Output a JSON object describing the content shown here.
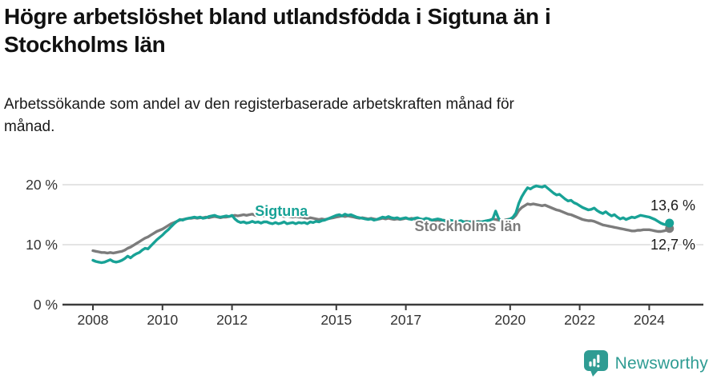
{
  "header": {
    "title_lines": [
      "Högre arbetslöshet bland utlandsfödda i Sigtuna än i",
      "Stockholms län"
    ],
    "subtitle_lines": [
      "Arbetssökande som andel av den registerbaserade arbetskraften månad för",
      "månad."
    ]
  },
  "footer": {
    "brand": "Newsworthy",
    "brand_color": "#2f9c93"
  },
  "chart_data": {
    "type": "line",
    "title": "Högre arbetslöshet bland utlandsfödda i Sigtuna än i Stockholms län",
    "subtitle": "Arbetssökande som andel av den registerbaserade arbetskraften månad för månad.",
    "unit": "%",
    "frequency": "monthly",
    "x_axis": {
      "ticks": [
        {
          "value": 2008,
          "label": "2008"
        },
        {
          "value": 2010,
          "label": "2010"
        },
        {
          "value": 2012,
          "label": "2012"
        },
        {
          "value": 2015,
          "label": "2015"
        },
        {
          "value": 2017,
          "label": "2017"
        },
        {
          "value": 2020,
          "label": "2020"
        },
        {
          "value": 2022,
          "label": "2022"
        },
        {
          "value": 2024,
          "label": "2024"
        }
      ],
      "range": [
        2008.0,
        2024.6
      ]
    },
    "y_axis": {
      "ticks": [
        {
          "value": 0,
          "label": "0 %"
        },
        {
          "value": 10,
          "label": "10 %"
        },
        {
          "value": 20,
          "label": "20 %"
        }
      ],
      "range": [
        0,
        24
      ]
    },
    "grid": "horizontal-only",
    "legend": "inline-labels",
    "colors": {
      "sigtuna": "#18a296",
      "stockholm": "#7c7c7c",
      "grid": "#dcdcdc",
      "axis": "#3b3b3b",
      "tick_label": "#333333",
      "value_label": "#1a1a1a",
      "halo": "#ffffff"
    },
    "series": [
      {
        "name": "Sigtuna",
        "color": "#18a296",
        "start_year": 2008,
        "start_month": 1,
        "end_label": "13,6 %",
        "label_at": {
          "year": 2012.66,
          "pct": 14.8
        },
        "values": [
          7.4,
          7.2,
          7.1,
          7.0,
          7.1,
          7.3,
          7.5,
          7.2,
          7.1,
          7.2,
          7.4,
          7.7,
          8.1,
          7.8,
          8.2,
          8.5,
          8.7,
          9.1,
          9.4,
          9.3,
          9.8,
          10.3,
          10.8,
          11.2,
          11.6,
          12.1,
          12.5,
          13.0,
          13.5,
          13.9,
          14.2,
          14.1,
          14.3,
          14.4,
          14.5,
          14.6,
          14.5,
          14.6,
          14.4,
          14.5,
          14.7,
          14.8,
          14.9,
          14.7,
          14.6,
          14.7,
          14.8,
          14.7,
          14.9,
          14.3,
          13.9,
          13.7,
          13.8,
          13.6,
          13.7,
          13.9,
          13.7,
          13.8,
          13.6,
          13.8,
          13.8,
          13.6,
          13.5,
          13.7,
          13.5,
          13.6,
          13.8,
          13.5,
          13.6,
          13.7,
          13.5,
          13.7,
          13.6,
          13.7,
          13.5,
          13.8,
          13.7,
          13.9,
          13.8,
          14.0,
          14.1,
          14.3,
          14.5,
          14.7,
          14.9,
          15.0,
          14.8,
          15.1,
          14.9,
          15.0,
          14.8,
          14.6,
          14.5,
          14.4,
          14.3,
          14.2,
          14.3,
          14.1,
          14.2,
          14.4,
          14.6,
          14.5,
          14.7,
          14.5,
          14.4,
          14.5,
          14.3,
          14.4,
          14.5,
          14.3,
          14.2,
          14.4,
          14.5,
          14.3,
          14.2,
          14.4,
          14.3,
          14.1,
          14.2,
          14.3,
          14.2,
          14.0,
          13.9,
          14.1,
          14.0,
          13.8,
          13.9,
          14.0,
          13.8,
          13.7,
          13.8,
          13.9,
          13.8,
          13.7,
          13.8,
          13.9,
          14.0,
          14.1,
          14.3,
          15.6,
          14.4,
          13.9,
          14.0,
          14.1,
          14.3,
          14.6,
          15.3,
          16.9,
          18.0,
          18.8,
          19.5,
          19.3,
          19.6,
          19.8,
          19.7,
          19.6,
          19.8,
          19.4,
          19.0,
          18.6,
          18.3,
          18.4,
          18.0,
          17.6,
          17.3,
          17.4,
          17.0,
          16.8,
          16.5,
          16.2,
          16.0,
          15.8,
          15.9,
          16.1,
          15.7,
          15.4,
          15.2,
          15.5,
          15.1,
          14.8,
          15.0,
          14.6,
          14.3,
          14.5,
          14.2,
          14.4,
          14.6,
          14.5,
          14.7,
          14.9,
          14.8,
          14.7,
          14.6,
          14.4,
          14.2,
          13.9,
          13.6,
          13.4,
          13.3,
          13.6
        ]
      },
      {
        "name": "Stockholms län",
        "color": "#7c7c7c",
        "start_year": 2008,
        "start_month": 1,
        "end_label": "12,7 %",
        "label_at": {
          "year": 2017.25,
          "pct": 12.3
        },
        "values": [
          9.0,
          8.9,
          8.8,
          8.7,
          8.7,
          8.6,
          8.7,
          8.6,
          8.7,
          8.8,
          8.9,
          9.1,
          9.4,
          9.6,
          9.9,
          10.2,
          10.5,
          10.8,
          11.1,
          11.3,
          11.6,
          11.9,
          12.2,
          12.4,
          12.6,
          12.9,
          13.2,
          13.5,
          13.7,
          13.9,
          14.1,
          14.2,
          14.3,
          14.4,
          14.4,
          14.5,
          14.4,
          14.5,
          14.5,
          14.6,
          14.5,
          14.6,
          14.7,
          14.6,
          14.5,
          14.6,
          14.6,
          14.7,
          14.8,
          14.9,
          14.8,
          14.9,
          15.0,
          14.9,
          15.0,
          15.1,
          14.9,
          14.8,
          14.9,
          14.8,
          14.9,
          15.0,
          14.9,
          14.8,
          14.9,
          14.8,
          14.7,
          14.8,
          14.7,
          14.6,
          14.7,
          14.6,
          14.6,
          14.5,
          14.4,
          14.5,
          14.4,
          14.3,
          14.2,
          14.3,
          14.2,
          14.3,
          14.4,
          14.5,
          14.6,
          14.7,
          14.8,
          14.7,
          14.8,
          14.7,
          14.6,
          14.5,
          14.4,
          14.5,
          14.4,
          14.3,
          14.4,
          14.3,
          14.2,
          14.3,
          14.4,
          14.3,
          14.4,
          14.3,
          14.2,
          14.3,
          14.2,
          14.3,
          14.4,
          14.3,
          14.4,
          14.3,
          14.2,
          14.3,
          14.2,
          14.1,
          14.2,
          14.1,
          14.0,
          14.1,
          14.0,
          14.1,
          14.0,
          13.9,
          14.0,
          13.9,
          13.8,
          13.9,
          13.8,
          13.9,
          13.8,
          13.9,
          13.8,
          13.9,
          13.8,
          13.9,
          14.0,
          14.1,
          14.3,
          14.2,
          14.1,
          14.0,
          14.1,
          14.2,
          14.3,
          14.4,
          14.9,
          15.7,
          16.2,
          16.5,
          16.8,
          16.7,
          16.8,
          16.7,
          16.6,
          16.5,
          16.6,
          16.4,
          16.2,
          16.0,
          15.8,
          15.7,
          15.5,
          15.3,
          15.1,
          15.0,
          14.8,
          14.6,
          14.4,
          14.2,
          14.1,
          14.0,
          14.0,
          13.9,
          13.7,
          13.5,
          13.3,
          13.2,
          13.1,
          13.0,
          12.9,
          12.8,
          12.7,
          12.6,
          12.5,
          12.4,
          12.3,
          12.3,
          12.4,
          12.4,
          12.5,
          12.5,
          12.5,
          12.4,
          12.3,
          12.2,
          12.2,
          12.3,
          12.4,
          12.7
        ]
      }
    ]
  }
}
